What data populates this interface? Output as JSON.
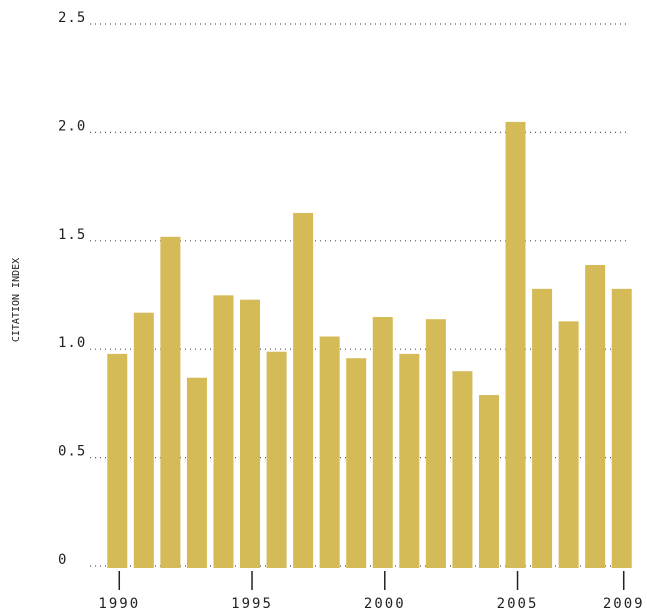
{
  "chart_data": {
    "type": "bar",
    "ylabel": "CITATION INDEX",
    "categories": [
      "1990",
      null,
      null,
      null,
      null,
      "1995",
      null,
      null,
      null,
      null,
      "2000",
      null,
      null,
      null,
      null,
      "2005",
      null,
      null,
      null,
      "2009"
    ],
    "values": [
      0.96,
      1.15,
      1.5,
      0.85,
      1.23,
      1.21,
      0.97,
      1.61,
      1.04,
      0.94,
      1.13,
      0.96,
      1.12,
      0.88,
      0.77,
      2.03,
      1.26,
      1.11,
      1.37,
      1.26
    ],
    "color": "#d4bb57",
    "ylim": [
      0,
      2.5
    ],
    "yticks": [
      0,
      0.5,
      {
        "value": 1,
        "label": "1.0"
      },
      1.5,
      {
        "value": 2,
        "label": "2.0"
      },
      2.5
    ],
    "grid": true
  }
}
